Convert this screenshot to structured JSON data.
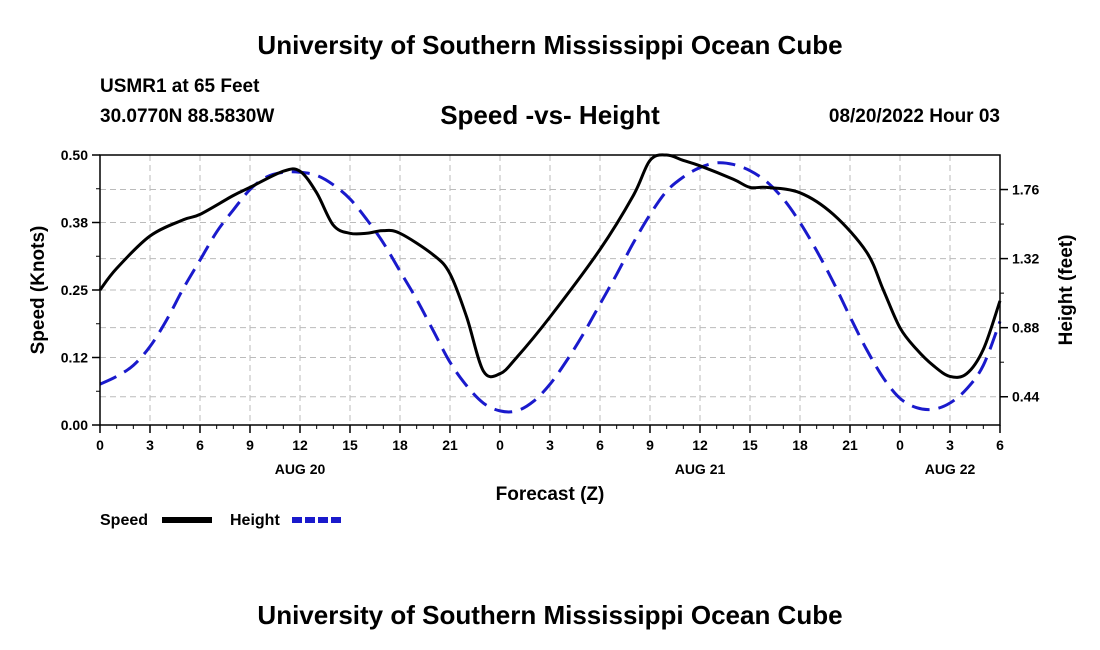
{
  "header": {
    "title": "University of Southern Mississippi Ocean Cube",
    "station": "USMR1 at 65 Feet",
    "coords": "30.0770N  88.5830W",
    "chart_title": "Speed -vs- Height",
    "datetime": "08/20/2022 Hour 03"
  },
  "footer": {
    "title": "University of Southern Mississippi Ocean Cube"
  },
  "colors": {
    "speed": "#000000",
    "height": "#1a1acc",
    "grid": "#bbbbbb"
  },
  "chart_data": {
    "type": "line",
    "title": "Speed -vs- Height",
    "xlabel": "Forecast (Z)",
    "ylabel": "Speed (Knots)",
    "y2label": "Height (feet)",
    "xlim": [
      0,
      54
    ],
    "ylim": [
      0,
      0.5
    ],
    "y2lim": [
      0.26,
      1.98
    ],
    "x_ticks": [
      0,
      3,
      6,
      9,
      12,
      15,
      18,
      21,
      24,
      27,
      30,
      33,
      36,
      39,
      42,
      45,
      48,
      51,
      54
    ],
    "x_tick_labels": [
      "0",
      "3",
      "6",
      "9",
      "12",
      "15",
      "18",
      "21",
      "0",
      "3",
      "6",
      "9",
      "12",
      "15",
      "18",
      "21",
      "0",
      "3",
      "6"
    ],
    "date_labels": [
      {
        "x": 12,
        "label": "AUG 20"
      },
      {
        "x": 36,
        "label": "AUG 21"
      },
      {
        "x": 51,
        "label": "AUG 22"
      }
    ],
    "y_ticks": [
      0,
      0.125,
      0.25,
      0.375,
      0.5
    ],
    "y_tick_labels": [
      "0.00",
      "0.12",
      "0.25",
      "0.38",
      "0.50"
    ],
    "y2_ticks": [
      0.44,
      0.88,
      1.32,
      1.76
    ],
    "y2_tick_labels": [
      "0.44",
      "0.88",
      "1.32",
      "1.76"
    ],
    "legend": [
      "Speed",
      "Height"
    ],
    "series": [
      {
        "name": "Speed",
        "axis": "left",
        "style": "solid",
        "x": [
          0,
          1,
          3,
          5,
          6,
          8,
          9,
          11,
          12,
          13,
          14,
          15,
          16,
          17,
          18,
          20,
          21,
          22,
          23,
          24,
          25,
          27,
          30,
          32,
          33,
          34,
          35,
          36,
          38,
          39,
          40,
          42,
          44,
          46,
          47,
          48,
          49,
          50,
          51,
          52,
          53,
          54
        ],
        "values": [
          0.25,
          0.29,
          0.35,
          0.38,
          0.39,
          0.425,
          0.44,
          0.47,
          0.47,
          0.43,
          0.37,
          0.355,
          0.355,
          0.36,
          0.355,
          0.315,
          0.28,
          0.2,
          0.1,
          0.095,
          0.125,
          0.2,
          0.325,
          0.425,
          0.49,
          0.5,
          0.49,
          0.48,
          0.455,
          0.44,
          0.44,
          0.43,
          0.39,
          0.32,
          0.25,
          0.18,
          0.14,
          0.11,
          0.09,
          0.095,
          0.14,
          0.23
        ]
      },
      {
        "name": "Height",
        "axis": "right",
        "style": "dashed",
        "x": [
          0,
          1,
          2,
          3,
          4,
          5,
          6,
          7,
          8,
          9,
          10,
          11,
          12,
          13,
          14,
          15,
          16,
          17,
          18,
          19,
          20,
          21,
          22,
          23,
          24,
          25,
          26,
          27,
          28,
          29,
          30,
          31,
          32,
          33,
          34,
          35,
          36,
          37,
          38,
          39,
          40,
          41,
          42,
          43,
          44,
          45,
          46,
          47,
          48,
          49,
          50,
          51,
          52,
          53,
          54
        ],
        "values": [
          0.52,
          0.57,
          0.64,
          0.76,
          0.93,
          1.13,
          1.31,
          1.49,
          1.63,
          1.76,
          1.84,
          1.87,
          1.87,
          1.85,
          1.79,
          1.7,
          1.57,
          1.42,
          1.24,
          1.06,
          0.86,
          0.66,
          0.51,
          0.4,
          0.35,
          0.35,
          0.41,
          0.52,
          0.67,
          0.84,
          1.03,
          1.22,
          1.42,
          1.6,
          1.75,
          1.84,
          1.9,
          1.93,
          1.92,
          1.88,
          1.81,
          1.7,
          1.55,
          1.37,
          1.17,
          0.95,
          0.74,
          0.56,
          0.43,
          0.37,
          0.36,
          0.4,
          0.49,
          0.64,
          0.92
        ]
      }
    ]
  }
}
